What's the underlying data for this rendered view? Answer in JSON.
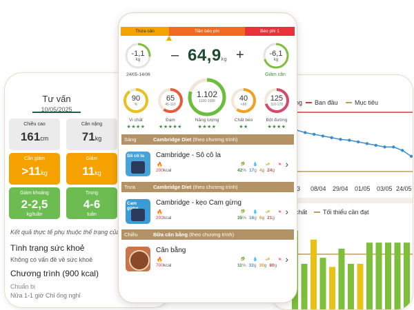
{
  "left": {
    "tab_title": "Tư vấn",
    "tab_date": "10/05/2025",
    "cards": [
      {
        "label": "Chiều cao",
        "value": "161",
        "unit": "cm",
        "sub": ""
      },
      {
        "label": "Cân nặng",
        "value": "71",
        "unit": "kg",
        "sub": ""
      },
      {
        "label": "Cần giảm",
        "value": ">11",
        "unit": "kg",
        "sub": ""
      },
      {
        "label": "Giảm",
        "value": "11",
        "unit": "kg",
        "sub": ""
      },
      {
        "label": "Giảm khoảng",
        "value": "2-2,5",
        "unit": "",
        "sub": "kg/tuần"
      },
      {
        "label": "Trong",
        "value": "4-6",
        "unit": "",
        "sub": "tuần"
      }
    ],
    "note": "Kết quả thực tế phụ thuộc thể trạng của c",
    "health_title": "Tình trạng sức khoẻ",
    "health_text": "Không có vấn đề về sức khoẻ",
    "program_title": "Chương trình (900 kcal)",
    "prepare": "Chuẩn bị",
    "cut_text": "Nửa 1-1 giờ Chỉ ống nghỉ"
  },
  "right": {
    "legend1": {
      "items": [
        "ng",
        "Ban đầu",
        "Mục tiêu"
      ]
    },
    "xaxis": [
      "03",
      "08/04",
      "29/04",
      "01/05",
      "03/05",
      "24/05"
    ],
    "legend2": {
      "items": [
        "chất",
        "Tối thiểu cần đạt"
      ]
    },
    "line_values": [
      68,
      67.5,
      67.2,
      66.9,
      66.6,
      66.4,
      66.2,
      66.0,
      65.8,
      65.7,
      65.5,
      65.3,
      65.1,
      64.9,
      64.9,
      64.5,
      63.8
    ],
    "bar_values": [
      52,
      30,
      46,
      34,
      28,
      40,
      30,
      30,
      44,
      44,
      44,
      44,
      44
    ],
    "colors": {
      "red": "#d63a2f",
      "olive": "#b79e5a",
      "green": "#7dbf3b",
      "yellow": "#e9c218",
      "line": "#3a8ccf"
    }
  },
  "center": {
    "bmi": [
      "Thừa cân",
      "Tiền béo phì",
      "Béo phì 1"
    ],
    "prev_weight": {
      "value": "-1,1",
      "unit": "kg"
    },
    "date_range": "24/05-14/06",
    "minus": "–",
    "weight": "64,9",
    "weight_unit": "kg",
    "plus": "+",
    "goal_weight": {
      "value": "-6,1",
      "unit": "kg",
      "label": "Giảm cân"
    },
    "nutrients": [
      {
        "value": "90",
        "sub": "%",
        "label": "Vi chất",
        "stars": "★★★★",
        "color": "#e8c020",
        "fill": 0.9
      },
      {
        "value": "65",
        "sub": "45-110",
        "label": "Đạm",
        "stars": "★★★★★",
        "color": "#e85a3c",
        "fill": 0.6
      },
      {
        "value": "1.102",
        "sub": "1100-1980",
        "label": "Năng lượng",
        "stars": "★★★★",
        "color": "#6abf3a",
        "fill": 0.8
      },
      {
        "value": "40",
        "sub": "<66",
        "label": "Chất béo",
        "stars": "★★",
        "color": "#f0a020",
        "fill": 0.6
      },
      {
        "value": "125",
        "sub": "110-178",
        "label": "Bột đường",
        "stars": "★★★★",
        "color": "#d44a6a",
        "fill": 0.7
      }
    ],
    "meals": [
      {
        "period": "Sáng",
        "program": "Cambridge Diet",
        "note": "(theo chương trình)",
        "title": "Cambridge - Sô cô la",
        "kcal": "200",
        "kcal_unit": "kcal",
        "macro": [
          "42",
          "17",
          "4",
          "24"
        ],
        "thumb_text": "Sô cô la",
        "thumb_color": "#4aa3d8"
      },
      {
        "period": "Trưa",
        "program": "Cambridge Diet",
        "note": "(theo chương trình)",
        "title": "Cambridge - kẹo Cam gừng",
        "kcal": "202",
        "kcal_unit": "kcal",
        "macro": [
          "35",
          "16",
          "6",
          "21"
        ],
        "thumb_text": "Cam gừng",
        "thumb_color": "#3c9ad4"
      },
      {
        "period": "Chiều",
        "program": "Bữa cân bằng",
        "note": "(theo chương trình)",
        "title": "Cân bằng",
        "kcal": "700",
        "kcal_unit": "kcal",
        "macro": [
          "11",
          "32",
          "30",
          "80"
        ],
        "thumb_text": "",
        "thumb_color": "#c9744a"
      }
    ],
    "macro_units": [
      "%",
      "g",
      "g",
      "g"
    ]
  }
}
